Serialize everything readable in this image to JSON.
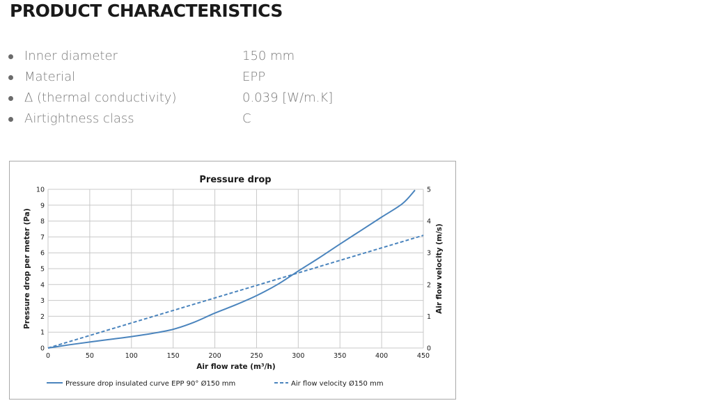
{
  "page": {
    "title": "PRODUCT CHARACTERISTICS"
  },
  "specs": [
    {
      "name": "Inner diameter",
      "value": "150 mm"
    },
    {
      "name": "Material",
      "value": "EPP"
    },
    {
      "name": "Δ (thermal conductivity)",
      "value": "0.039 [W/m.K]"
    },
    {
      "name": "Airtightness class",
      "value": "C"
    }
  ],
  "colors": {
    "series": "#4a84bd",
    "grid": "#c8c8c8",
    "axis_text": "#1a1a1a"
  },
  "chart_data": {
    "type": "line",
    "title": "Pressure drop",
    "xlabel": "Air flow rate (m³/h)",
    "ylabel": "Pressure drop per meter (Pa)",
    "y2label": "Air flow velocity (m/s)",
    "xlim": [
      0,
      450
    ],
    "ylim": [
      0,
      10
    ],
    "y2lim": [
      0,
      5
    ],
    "x_ticks": [
      0,
      50,
      100,
      150,
      200,
      250,
      300,
      350,
      400,
      450
    ],
    "y_ticks": [
      0,
      1,
      2,
      3,
      4,
      5,
      6,
      7,
      8,
      9,
      10
    ],
    "y2_ticks": [
      0,
      1,
      2,
      3,
      4,
      5
    ],
    "grid": true,
    "legend_position": "bottom",
    "series": [
      {
        "name": "Pressure drop insulated curve EPP 90° Ø150 mm",
        "axis": "left",
        "style": "solid",
        "x": [
          0,
          25,
          50,
          75,
          100,
          125,
          150,
          175,
          200,
          225,
          250,
          275,
          300,
          325,
          350,
          375,
          400,
          425,
          440
        ],
        "y": [
          0,
          0.2,
          0.38,
          0.55,
          0.72,
          0.92,
          1.18,
          1.62,
          2.2,
          2.72,
          3.3,
          4.0,
          4.85,
          5.68,
          6.55,
          7.4,
          8.25,
          9.1,
          9.95
        ]
      },
      {
        "name": "Air flow velocity Ø150 mm",
        "axis": "right",
        "style": "dashed",
        "x": [
          0,
          450
        ],
        "y": [
          0,
          3.55
        ]
      }
    ]
  }
}
